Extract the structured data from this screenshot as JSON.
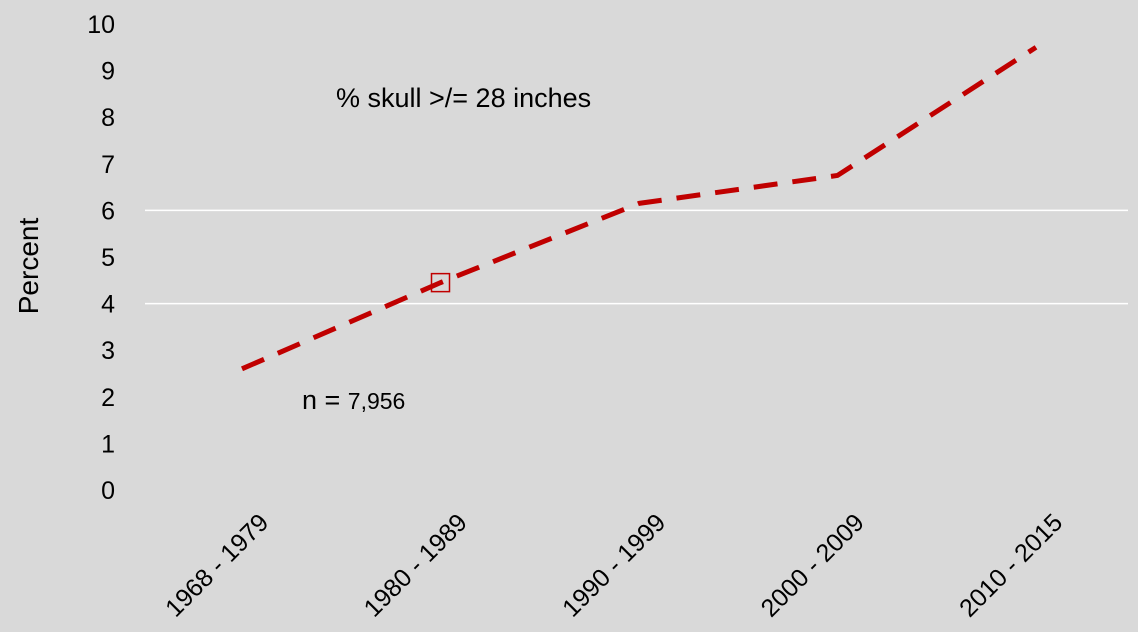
{
  "chart_data": {
    "type": "line",
    "categories": [
      "1968 - 1979",
      "1980 - 1989",
      "1990 - 1999",
      "2000 - 2009",
      "2010 - 2015"
    ],
    "series": [
      {
        "values": [
          2.6,
          4.45,
          6.15,
          6.75,
          9.5
        ],
        "color": "#c00000",
        "style": "dashed"
      }
    ],
    "ylabel": "Percent",
    "xlabel": "",
    "title": "",
    "ylim": [
      0,
      10
    ],
    "yticks": [
      "0",
      "1",
      "2",
      "3",
      "4",
      "5",
      "6",
      "7",
      "8",
      "9",
      "10"
    ],
    "gridlines_at": [
      4,
      6
    ],
    "highlighted_point_index": 1,
    "annotations": {
      "series_note": "% skull >/= 28 inches",
      "n_prefix": "n = ",
      "n_value": "7,956"
    },
    "legend": "none"
  }
}
